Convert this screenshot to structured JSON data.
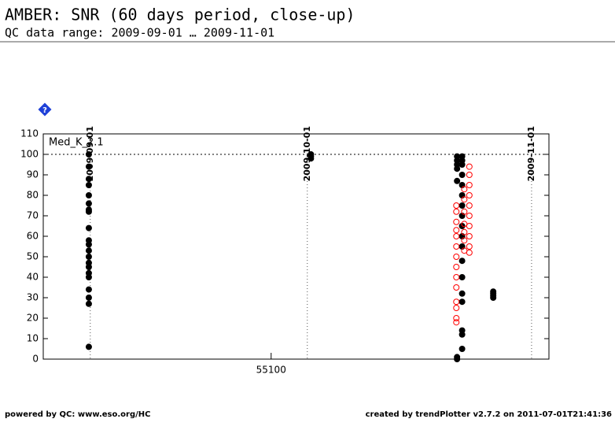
{
  "chart_data": {
    "type": "scatter",
    "title": "AMBER: SNR (60 days period, close-up)",
    "subtitle": "QC data range: 2009-09-01 … 2009-11-01",
    "annotation": "Med_K_2.1",
    "footer_left": "powered by QC: www.eso.org/HC",
    "footer_right": "created by trendPlotter v2.7.2 on 2011-07-01T21:41:36",
    "xlim": [
      55068.5,
      55138.4
    ],
    "xticks": [
      55100
    ],
    "x2ticks": [
      {
        "value": 55075,
        "label": "2009-09-01"
      },
      {
        "value": 55105,
        "label": "2009-10-01"
      },
      {
        "value": 55136,
        "label": "2009-11-01"
      }
    ],
    "ylim": [
      0,
      110
    ],
    "yticks": [
      0,
      10,
      20,
      30,
      40,
      50,
      60,
      70,
      80,
      90,
      100,
      110
    ],
    "hline": 100,
    "series": [
      {
        "color": "#000000",
        "marker": "filled",
        "x": [
          55074.8,
          55074.8,
          55074.8,
          55074.8,
          55074.8,
          55074.8,
          55074.8,
          55074.8,
          55074.8,
          55074.8,
          55074.8,
          55074.8,
          55074.8,
          55074.8,
          55074.8,
          55074.8,
          55074.8,
          55074.8,
          55074.8,
          55074.8,
          55074.8
        ],
        "values": [
          100,
          94,
          88,
          85,
          80,
          76,
          73,
          72,
          64,
          58,
          56,
          53,
          50,
          47,
          45,
          42,
          40,
          34,
          30,
          27,
          6
        ]
      },
      {
        "color": "#000000",
        "marker": "filled",
        "x": [
          55105.5,
          55105.5,
          55105.5
        ],
        "values": [
          100,
          99,
          98
        ]
      },
      {
        "color": "#000000",
        "marker": "filled",
        "x": [
          55125.7,
          55125.7,
          55125.7,
          55125.7,
          55125.7,
          55125.7,
          55125.7
        ],
        "values": [
          99,
          97,
          95,
          93,
          87,
          1,
          0
        ]
      },
      {
        "color": "#000000",
        "marker": "filled",
        "x": [
          55126.4,
          55126.4,
          55126.4,
          55126.4,
          55126.4,
          55126.4,
          55126.4,
          55126.4,
          55126.4,
          55126.4,
          55126.4,
          55126.4,
          55126.4,
          55126.4,
          55126.4,
          55126.4,
          55126.4,
          55126.4
        ],
        "values": [
          99,
          97,
          95,
          90,
          85,
          80,
          75,
          70,
          65,
          60,
          55,
          48,
          40,
          32,
          28,
          14,
          12,
          5
        ]
      },
      {
        "color": "#ff0000",
        "marker": "open",
        "x": [
          55125.6,
          55125.6,
          55125.6,
          55125.6,
          55125.6,
          55125.6,
          55125.6,
          55125.6,
          55125.6,
          55125.6,
          55125.6,
          55125.6,
          55125.6,
          55125.6
        ],
        "values": [
          75,
          72,
          67,
          63,
          60,
          55,
          50,
          45,
          40,
          35,
          28,
          25,
          20,
          18
        ]
      },
      {
        "color": "#ff0000",
        "marker": "open",
        "x": [
          55127.4,
          55127.4,
          55127.4,
          55127.4,
          55127.4,
          55127.4,
          55127.4,
          55127.4,
          55127.4,
          55127.4
        ],
        "values": [
          94,
          90,
          85,
          80,
          75,
          70,
          65,
          60,
          55,
          52
        ]
      },
      {
        "color": "#ff0000",
        "marker": "open",
        "x": [
          55126.7,
          55126.7,
          55126.7,
          55126.7,
          55126.7,
          55126.7,
          55126.7
        ],
        "values": [
          83,
          78,
          72,
          66,
          62,
          58,
          53
        ]
      },
      {
        "color": "#000000",
        "marker": "filled",
        "x": [
          55130.7,
          55130.7,
          55130.7,
          55130.7
        ],
        "values": [
          33,
          32,
          31,
          30
        ]
      }
    ]
  }
}
